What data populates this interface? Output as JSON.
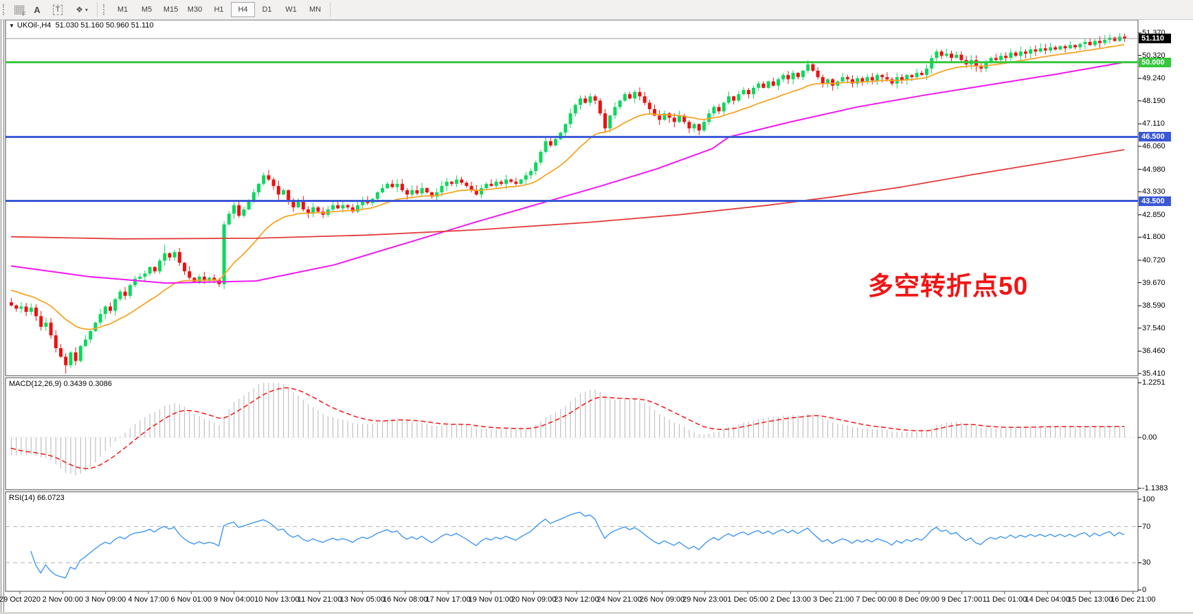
{
  "toolbar": {
    "tools": [
      {
        "name": "grid-tool",
        "label": "F"
      },
      {
        "name": "text-tool",
        "label": "A"
      },
      {
        "name": "text-label-tool",
        "label": "T"
      },
      {
        "name": "arrows-tool",
        "glyph": "❖",
        "caret": "▾"
      }
    ],
    "timeframes": [
      "M1",
      "M5",
      "M15",
      "M30",
      "H1",
      "H4",
      "D1",
      "W1",
      "MN"
    ],
    "active_timeframe": "H4"
  },
  "chart": {
    "dropdown_icon": "▼",
    "symbol_label": "UKOil-,H4",
    "ohlc_label": "51.030 51.160 50.960 51.110"
  },
  "annotation": {
    "text": "多空转折点50",
    "color": "#f11414"
  },
  "indicator_labels": {
    "macd": "MACD(12,26,9) 0.3439 0.3086",
    "rsi": "RSI(14) 66.0723"
  },
  "axes": {
    "price_ticks": [
      "51.370",
      "50.320",
      "49.240",
      "48.190",
      "47.110",
      "46.060",
      "44.980",
      "43.930",
      "42.850",
      "41.800",
      "40.720",
      "39.670",
      "38.590",
      "37.540",
      "36.460",
      "35.410"
    ],
    "macd_ticks": [
      "1.2251",
      "0.00",
      "-1.1383"
    ],
    "rsi_ticks": [
      "100",
      "70",
      "30",
      "0"
    ],
    "time_labels": [
      "29 Oct 2020",
      "2 Nov 00:00",
      "3 Nov 09:00",
      "4 Nov 17:00",
      "6 Nov 01:00",
      "9 Nov 04:00",
      "10 Nov 13:00",
      "11 Nov 21:00",
      "13 Nov 05:00",
      "16 Nov 08:00",
      "17 Nov 17:00",
      "19 Nov 01:00",
      "20 Nov 09:00",
      "23 Nov 12:00",
      "24 Nov 21:00",
      "26 Nov 09:00",
      "29 Nov 23:00",
      "1 Dec 05:00",
      "2 Dec 13:00",
      "3 Dec 21:00",
      "7 Dec 00:00",
      "8 Dec 09:00",
      "9 Dec 17:00",
      "11 Dec 01:00",
      "14 Dec 04:00",
      "15 Dec 13:00",
      "16 Dec 21:00"
    ]
  },
  "price_badges": [
    {
      "text": "51.110",
      "price": 51.11,
      "bg": "#000000",
      "role": "current-price"
    },
    {
      "text": "50.000",
      "price": 50.0,
      "bg": "#35c73c",
      "role": "level"
    },
    {
      "text": "46.500",
      "price": 46.5,
      "bg": "#3a57d5",
      "role": "level"
    },
    {
      "text": "43.500",
      "price": 43.5,
      "bg": "#3a57d5",
      "role": "level"
    }
  ],
  "colors": {
    "up_candle": "#0bd95c",
    "down_candle": "#ec1010",
    "ma_fast": "#f7a426",
    "ma_mid": "#f116f1",
    "ma_slow": "#e23b3b",
    "macd_hist": "#c0c0c0",
    "macd_signal": "#f51414",
    "rsi_line": "#3d96f5",
    "level_green": "#35c73c",
    "level_blue": "#3a57d5",
    "price_line": "#9a9a9a",
    "pane_border": "#4a4a4a",
    "dashed_level": "#b0b0b0"
  },
  "chart_data": {
    "type": "candlestick",
    "symbol": "UKOil-",
    "timeframe": "H4",
    "current_ohlc": {
      "open": 51.03,
      "high": 51.16,
      "low": 50.96,
      "close": 51.11
    },
    "x_range": [
      "29 Oct 2020",
      "16 Dec 21:00"
    ],
    "y_range": [
      35.41,
      51.37
    ],
    "closes": [
      38.6,
      38.45,
      38.55,
      38.3,
      38.5,
      38.1,
      37.6,
      37.8,
      37.2,
      36.6,
      36.2,
      35.8,
      36.4,
      36.0,
      36.7,
      37.0,
      37.4,
      37.8,
      38.2,
      38.55,
      38.35,
      38.9,
      39.25,
      39.05,
      39.55,
      39.85,
      39.95,
      40.1,
      40.4,
      40.2,
      40.7,
      41.05,
      40.85,
      41.1,
      40.6,
      40.2,
      39.9,
      39.7,
      39.95,
      39.75,
      39.9,
      39.8,
      39.6,
      42.4,
      42.9,
      43.3,
      42.8,
      43.1,
      43.5,
      43.9,
      44.3,
      44.7,
      44.5,
      44.2,
      43.8,
      44.0,
      43.5,
      43.2,
      43.5,
      43.1,
      42.9,
      43.2,
      43.0,
      42.85,
      43.1,
      43.3,
      43.15,
      43.3,
      43.2,
      43.0,
      43.3,
      43.5,
      43.4,
      43.6,
      43.9,
      44.1,
      44.3,
      44.15,
      44.3,
      44.0,
      43.8,
      44.0,
      43.85,
      44.1,
      43.9,
      43.7,
      43.9,
      44.2,
      44.4,
      44.3,
      44.5,
      44.35,
      44.2,
      44.0,
      43.8,
      44.1,
      44.3,
      44.2,
      44.4,
      44.3,
      44.5,
      44.4,
      44.3,
      44.5,
      44.7,
      44.9,
      45.3,
      45.8,
      46.3,
      46.1,
      46.4,
      46.7,
      47.1,
      47.6,
      48.0,
      48.3,
      48.1,
      48.4,
      48.2,
      47.6,
      46.9,
      47.5,
      47.9,
      48.2,
      48.5,
      48.3,
      48.6,
      48.4,
      48.1,
      47.8,
      47.5,
      47.3,
      47.6,
      47.4,
      47.2,
      47.5,
      47.2,
      46.9,
      47.1,
      46.8,
      47.2,
      47.6,
      47.9,
      47.7,
      48.1,
      48.4,
      48.2,
      48.5,
      48.7,
      48.5,
      48.8,
      49.0,
      48.8,
      49.1,
      48.9,
      49.2,
      49.4,
      49.2,
      49.5,
      49.3,
      49.6,
      49.9,
      49.6,
      49.3,
      49.0,
      49.2,
      48.9,
      49.1,
      49.3,
      49.2,
      49.0,
      49.25,
      49.1,
      49.3,
      49.15,
      49.4,
      49.3,
      49.2,
      49.0,
      49.3,
      49.15,
      49.4,
      49.3,
      49.5,
      49.4,
      49.7,
      50.2,
      50.5,
      50.3,
      50.4,
      50.2,
      50.35,
      50.1,
      49.9,
      50.1,
      49.8,
      49.7,
      50.0,
      50.2,
      50.1,
      50.3,
      50.2,
      50.45,
      50.3,
      50.5,
      50.4,
      50.6,
      50.5,
      50.65,
      50.55,
      50.7,
      50.6,
      50.75,
      50.65,
      50.8,
      50.7,
      50.85,
      50.95,
      50.8,
      51.0,
      50.9,
      51.05,
      51.15,
      51.0,
      51.2,
      51.11
    ],
    "wick_overrides": {
      "11": {
        "low": 35.41
      },
      "31": {
        "high": 41.45
      },
      "52": {
        "high": 44.95
      },
      "224": {
        "high": 51.37
      }
    },
    "horizontal_levels": [
      {
        "price": 51.11,
        "style": "solid",
        "width": 1,
        "color": "#9a9a9a",
        "role": "current-price-line"
      },
      {
        "price": 50.0,
        "style": "solid",
        "width": 3,
        "color": "#35c73c",
        "role": "support-resistance"
      },
      {
        "price": 46.5,
        "style": "solid",
        "width": 3,
        "color": "#3a57d5",
        "role": "support-resistance"
      },
      {
        "price": 43.5,
        "style": "solid",
        "width": 3,
        "color": "#3a57d5",
        "role": "support-resistance"
      }
    ],
    "moving_averages": {
      "fast": {
        "type": "ema",
        "period": 20,
        "seed": 39.4,
        "color": "#f7a426"
      },
      "mid": {
        "type": "anchors",
        "color": "#f116f1",
        "anchors": [
          [
            0,
            40.45
          ],
          [
            0.07,
            39.95
          ],
          [
            0.14,
            39.65
          ],
          [
            0.22,
            39.75
          ],
          [
            0.29,
            40.5
          ],
          [
            0.36,
            41.6
          ],
          [
            0.42,
            42.55
          ],
          [
            0.48,
            43.45
          ],
          [
            0.53,
            44.2
          ],
          [
            0.58,
            45.0
          ],
          [
            0.63,
            45.95
          ],
          [
            0.645,
            46.5
          ],
          [
            0.7,
            47.2
          ],
          [
            0.76,
            47.9
          ],
          [
            0.82,
            48.45
          ],
          [
            0.88,
            48.95
          ],
          [
            0.94,
            49.45
          ],
          [
            1,
            50.0
          ]
        ]
      },
      "slow": {
        "type": "anchors",
        "color": "#e23b3b",
        "anchors": [
          [
            0,
            41.82
          ],
          [
            0.1,
            41.72
          ],
          [
            0.22,
            41.75
          ],
          [
            0.32,
            41.9
          ],
          [
            0.42,
            42.15
          ],
          [
            0.52,
            42.5
          ],
          [
            0.6,
            42.85
          ],
          [
            0.68,
            43.3
          ],
          [
            0.74,
            43.7
          ],
          [
            0.8,
            44.15
          ],
          [
            0.86,
            44.7
          ],
          [
            0.93,
            45.3
          ],
          [
            1,
            45.9
          ]
        ]
      }
    },
    "macd": {
      "params": [
        12,
        26,
        9
      ],
      "current_main": 0.3439,
      "current_signal": 0.3086,
      "ylim": [
        -1.1383,
        1.2251
      ]
    },
    "rsi": {
      "period": 14,
      "current": 66.0723,
      "levels": [
        70,
        30
      ],
      "ylim": [
        0,
        100
      ]
    }
  }
}
